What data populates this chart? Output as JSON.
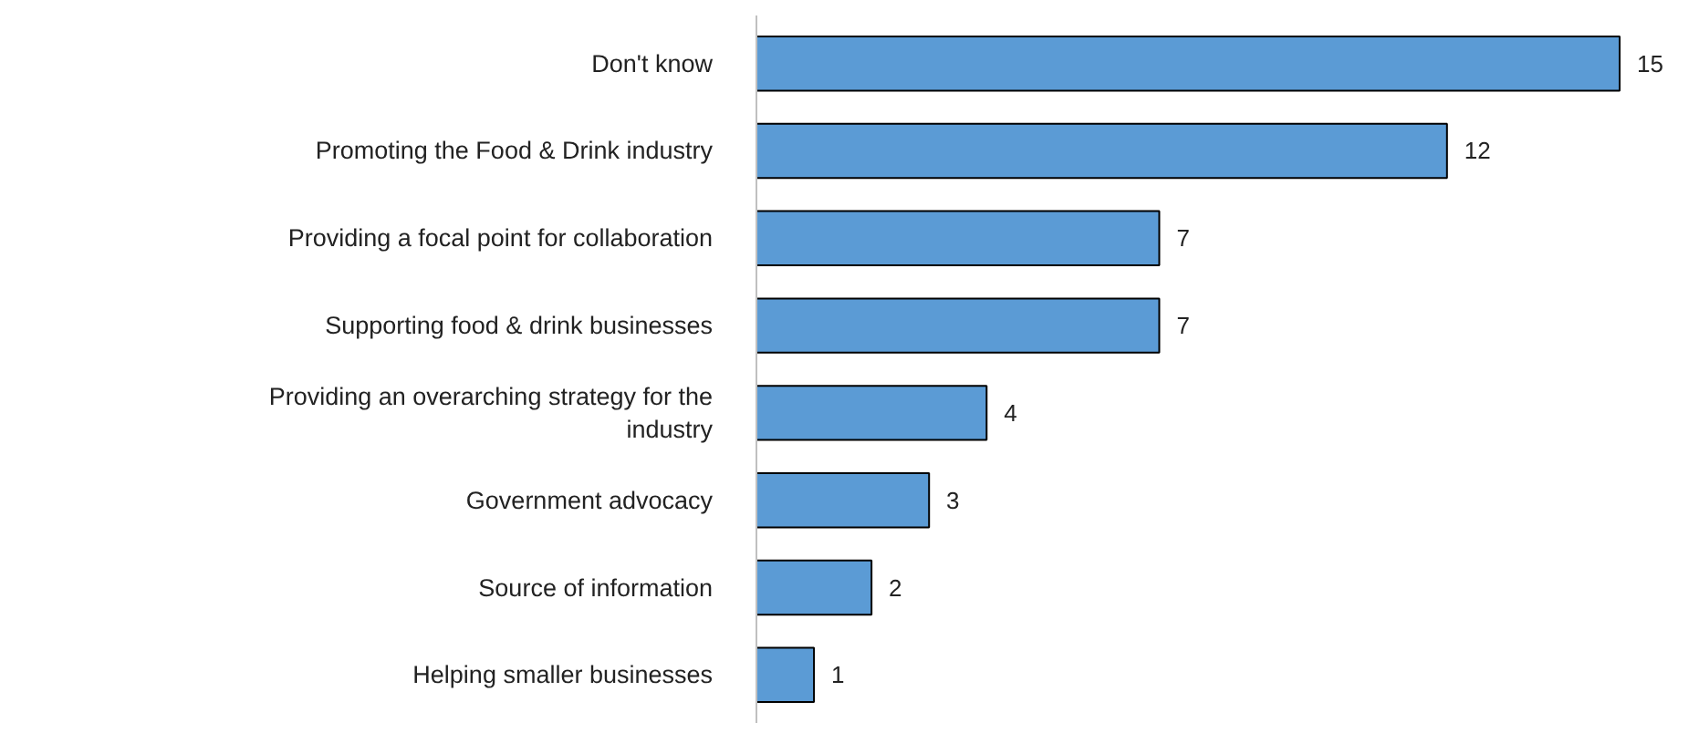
{
  "chart_data": {
    "type": "bar",
    "orientation": "horizontal",
    "categories": [
      "Don't know",
      "Promoting the Food & Drink industry",
      "Providing a focal point for collaboration",
      "Supporting food & drink businesses",
      "Providing an overarching strategy for the industry",
      "Government advocacy",
      "Source of information",
      "Helping smaller businesses"
    ],
    "values": [
      15,
      12,
      7,
      7,
      4,
      3,
      2,
      1
    ],
    "color": "#5b9bd5",
    "data_labels": true,
    "tick_labels": "y"
  }
}
